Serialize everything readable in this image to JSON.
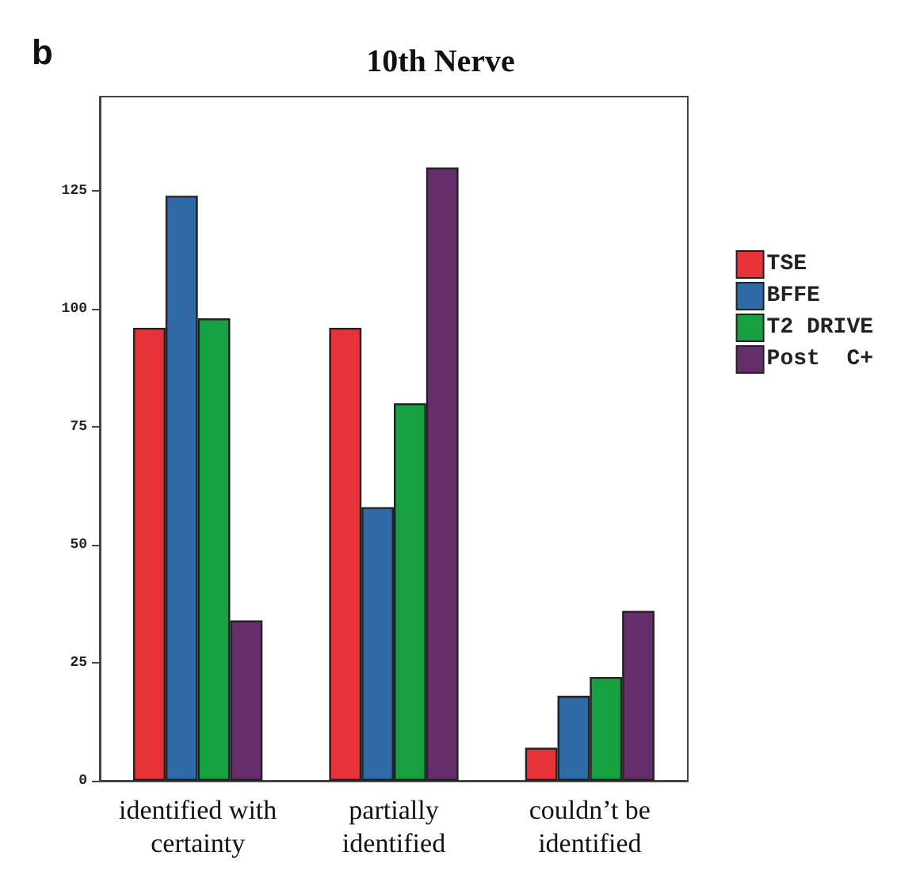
{
  "chart_data": {
    "type": "bar",
    "title": "10th Nerve",
    "annotations": [
      "b"
    ],
    "categories": [
      "identified with\ncertainty",
      "partially\nidentified",
      "couldn’t be\nidentified"
    ],
    "series": [
      {
        "name": "TSE",
        "color": "#e8323a",
        "values": [
          96,
          96,
          7
        ]
      },
      {
        "name": "BFFE",
        "color": "#2f69a6",
        "values": [
          124,
          58,
          18
        ]
      },
      {
        "name": "T2 DRIVE",
        "color": "#17a040",
        "values": [
          98,
          80,
          22
        ]
      },
      {
        "name": "Post  C+",
        "color": "#652d6a",
        "values": [
          34,
          130,
          36
        ]
      }
    ],
    "ylim": [
      0,
      145
    ],
    "yticks": [
      0,
      25,
      50,
      75,
      100,
      125
    ],
    "grid": false,
    "legend": "right"
  }
}
